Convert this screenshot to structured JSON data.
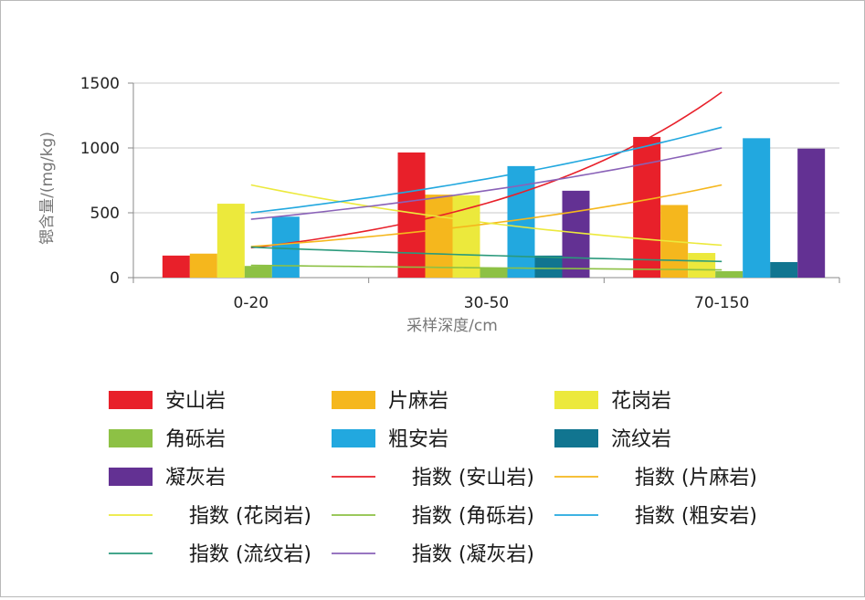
{
  "chart_data": {
    "type": "bar",
    "title": "",
    "xlabel": "采样深度/cm",
    "ylabel": "锶含量/(mg/kg)",
    "categories": [
      "0-20",
      "30-50",
      "70-150"
    ],
    "ylim": [
      0,
      1500
    ],
    "yticks": [
      0,
      500,
      1000,
      1500
    ],
    "grid": true,
    "legend_position": "bottom",
    "series": [
      {
        "name": "安山岩",
        "color": "#e8202a",
        "values": [
          170,
          965,
          1085
        ]
      },
      {
        "name": "片麻岩",
        "color": "#f5b71d",
        "values": [
          185,
          640,
          560
        ]
      },
      {
        "name": "花岗岩",
        "color": "#ece93c",
        "values": [
          570,
          635,
          190
        ]
      },
      {
        "name": "角砾岩",
        "color": "#8dc145",
        "values": [
          90,
          75,
          50
        ]
      },
      {
        "name": "粗安岩",
        "color": "#22a8df",
        "values": [
          470,
          860,
          1075
        ]
      },
      {
        "name": "流纹岩",
        "color": "#117590",
        "values": [
          0,
          170,
          120
        ]
      },
      {
        "name": "凝灰岩",
        "color": "#633193",
        "values": [
          0,
          670,
          995
        ]
      }
    ],
    "trendlines": [
      {
        "name": "指数 (安山岩)",
        "color": "#e8202a",
        "start": 230,
        "end": 1430
      },
      {
        "name": "指数 (片麻岩)",
        "color": "#f5b71d",
        "start": 240,
        "end": 715
      },
      {
        "name": "指数 (花岗岩)",
        "color": "#ece93c",
        "start": 715,
        "end": 250
      },
      {
        "name": "指数 (角砾岩)",
        "color": "#8dc145",
        "start": 95,
        "end": 60
      },
      {
        "name": "指数 (粗安岩)",
        "color": "#22a8df",
        "start": 500,
        "end": 1160
      },
      {
        "name": "指数 (流纹岩)",
        "color": "#2a9a7c",
        "start": 235,
        "end": 125
      },
      {
        "name": "指数 (凝灰岩)",
        "color": "#8a62b8",
        "start": 450,
        "end": 1000
      }
    ]
  }
}
